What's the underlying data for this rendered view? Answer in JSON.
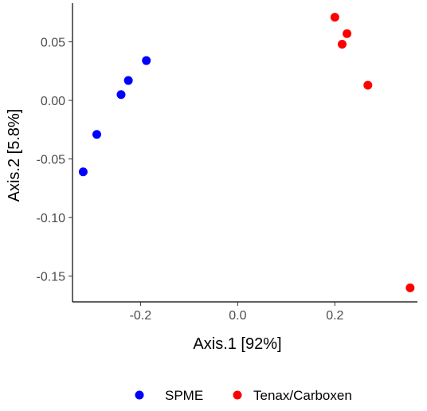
{
  "chart_data": {
    "type": "scatter",
    "title": "",
    "xlabel": "Axis.1   [92%]",
    "ylabel": "Axis.2   [5.8%]",
    "xlim": [
      -0.34,
      0.37
    ],
    "ylim": [
      -0.172,
      0.083
    ],
    "x_ticks": [
      -0.2,
      0.0,
      0.2
    ],
    "x_tick_labels": [
      "-0.2",
      "0.0",
      "0.2"
    ],
    "y_ticks": [
      0.05,
      0.0,
      -0.05,
      -0.1,
      -0.15
    ],
    "y_tick_labels": [
      "0.05",
      "0.00",
      "-0.05",
      "-0.10",
      "-0.15"
    ],
    "grid": false,
    "legend_position": "bottom",
    "series": [
      {
        "name": "SPME",
        "color": "#0000ff",
        "points": [
          {
            "x": -0.188,
            "y": 0.034
          },
          {
            "x": -0.225,
            "y": 0.017
          },
          {
            "x": -0.24,
            "y": 0.005
          },
          {
            "x": -0.29,
            "y": -0.029
          },
          {
            "x": -0.318,
            "y": -0.061
          }
        ]
      },
      {
        "name": "Tenax/Carboxen",
        "color": "#ff0000",
        "points": [
          {
            "x": 0.2,
            "y": 0.071
          },
          {
            "x": 0.225,
            "y": 0.057
          },
          {
            "x": 0.215,
            "y": 0.048
          },
          {
            "x": 0.268,
            "y": 0.013
          },
          {
            "x": 0.355,
            "y": -0.16
          }
        ]
      }
    ]
  }
}
